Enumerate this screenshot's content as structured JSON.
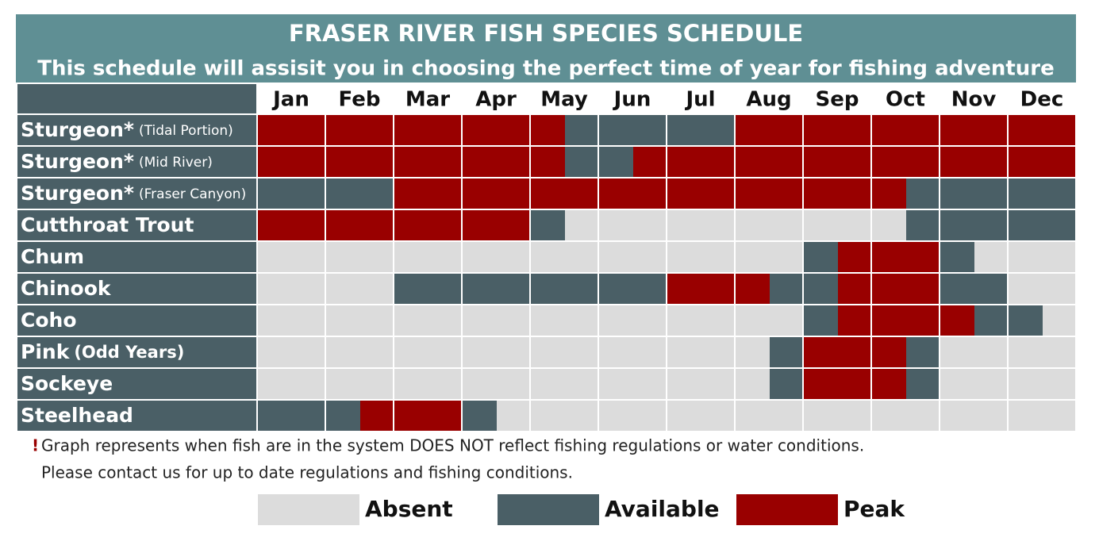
{
  "title": "FRASER RIVER FISH SPECIES SCHEDULE",
  "subtitle": "This schedule will assisit you in choosing the perfect time of year for fishing adventure",
  "months": [
    "Jan",
    "Feb",
    "Mar",
    "Apr",
    "May",
    "Jun",
    "Jul",
    "Aug",
    "Sep",
    "Oct",
    "Nov",
    "Dec"
  ],
  "legend": [
    {
      "label": "Absent",
      "color": "#dcdcdc"
    },
    {
      "label": "Available",
      "color": "#4a5f66"
    },
    {
      "label": "Peak",
      "color": "#990000"
    }
  ],
  "rows": [
    {
      "name": "Sturgeon*",
      "note": "(Tidal Portion)",
      "halves": [
        2,
        2,
        2,
        2,
        2,
        2,
        2,
        2,
        2,
        1,
        1,
        1,
        1,
        1,
        2,
        2,
        2,
        2,
        2,
        2,
        2,
        2,
        2,
        2
      ]
    },
    {
      "name": "Sturgeon*",
      "note": "(Mid River)",
      "halves": [
        2,
        2,
        2,
        2,
        2,
        2,
        2,
        2,
        2,
        1,
        1,
        2,
        2,
        2,
        2,
        2,
        2,
        2,
        2,
        2,
        2,
        2,
        2,
        2
      ]
    },
    {
      "name": "Sturgeon*",
      "note": "(Fraser Canyon)",
      "halves": [
        1,
        1,
        1,
        1,
        2,
        2,
        2,
        2,
        2,
        2,
        2,
        2,
        2,
        2,
        2,
        2,
        2,
        2,
        2,
        1,
        1,
        1,
        1,
        1
      ]
    },
    {
      "name": "Cutthroat Trout",
      "halves": [
        2,
        2,
        2,
        2,
        2,
        2,
        2,
        2,
        1,
        0,
        0,
        0,
        0,
        0,
        0,
        0,
        0,
        0,
        0,
        1,
        1,
        1,
        1,
        1
      ]
    },
    {
      "name": "Chum",
      "halves": [
        0,
        0,
        0,
        0,
        0,
        0,
        0,
        0,
        0,
        0,
        0,
        0,
        0,
        0,
        0,
        0,
        1,
        2,
        2,
        2,
        1,
        0,
        0,
        0
      ]
    },
    {
      "name": "Chinook",
      "halves": [
        0,
        0,
        0,
        0,
        1,
        1,
        1,
        1,
        1,
        1,
        1,
        1,
        2,
        2,
        2,
        1,
        1,
        2,
        2,
        2,
        1,
        1,
        0,
        0
      ]
    },
    {
      "name": "Coho",
      "halves": [
        0,
        0,
        0,
        0,
        0,
        0,
        0,
        0,
        0,
        0,
        0,
        0,
        0,
        0,
        0,
        0,
        1,
        2,
        2,
        2,
        2,
        1,
        1,
        0
      ]
    },
    {
      "name": "Pink",
      "note": "(Odd Years)",
      "halves": [
        0,
        0,
        0,
        0,
        0,
        0,
        0,
        0,
        0,
        0,
        0,
        0,
        0,
        0,
        0,
        1,
        2,
        2,
        2,
        1,
        0,
        0,
        0,
        0
      ]
    },
    {
      "name": "Sockeye",
      "halves": [
        0,
        0,
        0,
        0,
        0,
        0,
        0,
        0,
        0,
        0,
        0,
        0,
        0,
        0,
        0,
        1,
        2,
        2,
        2,
        1,
        0,
        0,
        0,
        0
      ]
    },
    {
      "name": "Steelhead",
      "halves": [
        1,
        1,
        1,
        2,
        2,
        2,
        1,
        0,
        0,
        0,
        0,
        0,
        0,
        0,
        0,
        0,
        0,
        0,
        0,
        0,
        0,
        0,
        0,
        0
      ]
    }
  ],
  "footnote": {
    "mark": "!",
    "line1": "Graph represents when fish are in the system DOES NOT reflect fishing regulations or water conditions.",
    "line2": "Please contact us for up to date regulations and fishing conditions."
  }
}
